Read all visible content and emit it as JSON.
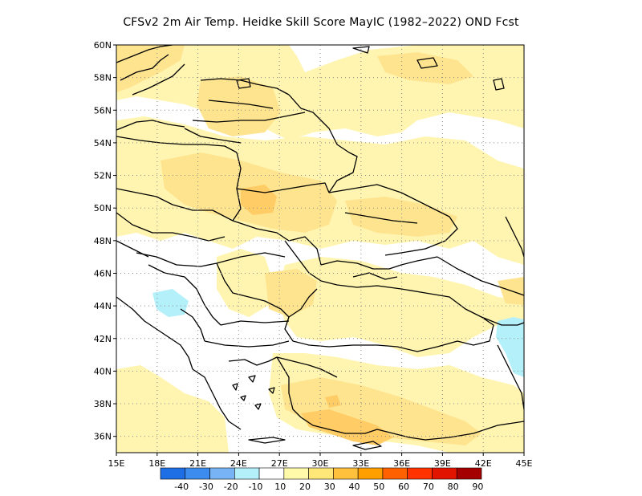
{
  "title": "CFSv2  2m Air Temp. Heidke Skill Score MayIC (1982–2022) OND Fcst",
  "map": {
    "lon_range": [
      15,
      45
    ],
    "lat_range": [
      35,
      60
    ],
    "x_tick_labels": [
      "15E",
      "18E",
      "21E",
      "24E",
      "27E",
      "30E",
      "33E",
      "36E",
      "39E",
      "42E",
      "45E"
    ],
    "y_tick_labels": [
      "36N",
      "38N",
      "40N",
      "42N",
      "44N",
      "46N",
      "48N",
      "50N",
      "52N",
      "54N",
      "56N",
      "58N",
      "60N"
    ],
    "gridlines": "dotted"
  },
  "colorbar": {
    "labels": [
      "-40",
      "-30",
      "-20",
      "-10",
      "10",
      "20",
      "30",
      "40",
      "50",
      "60",
      "70",
      "80",
      "90"
    ],
    "colors": [
      "#1e6ee6",
      "#3c8cf0",
      "#78b4f5",
      "#b4f0fa",
      "#ffffff",
      "#fffaaa",
      "#ffe878",
      "#ffc03c",
      "#ffa000",
      "#ff6000",
      "#ff3200",
      "#e11400",
      "#a50000"
    ]
  },
  "colors": {
    "c10": "#fff5b0",
    "c20": "#ffe490",
    "c30": "#ffcc66",
    "n10": "#b4f0fa",
    "border": "#000000"
  }
}
